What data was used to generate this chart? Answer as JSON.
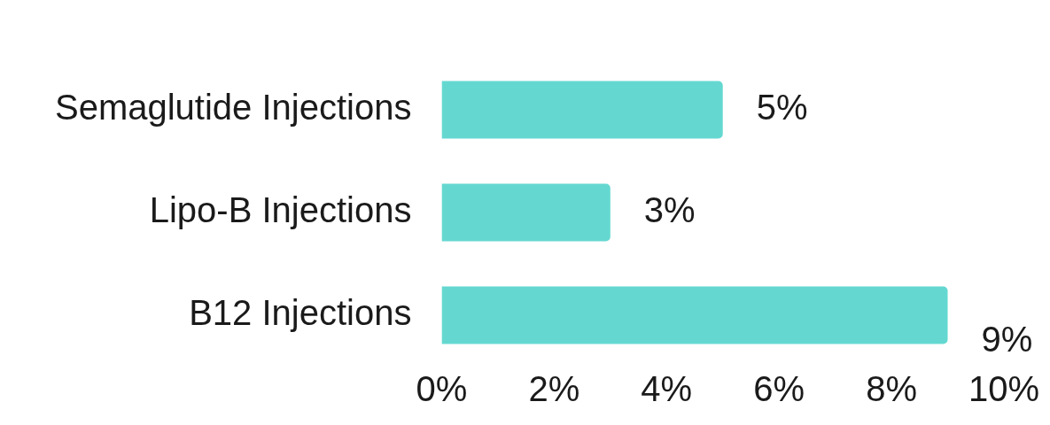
{
  "chart_data": {
    "type": "bar",
    "orientation": "horizontal",
    "categories": [
      "Semaglutide Injections",
      "Lipo-B Injections",
      "B12 Injections"
    ],
    "values": [
      5,
      3,
      9
    ],
    "color": "#64d8d0",
    "value_labels": [
      "5%",
      "3%",
      "9%"
    ],
    "xlim": [
      0,
      10
    ],
    "xticks": [
      {
        "value": 0,
        "label": "0%"
      },
      {
        "value": 2,
        "label": "2%"
      },
      {
        "value": 4,
        "label": "4%"
      },
      {
        "value": 6,
        "label": "6%"
      },
      {
        "value": 8,
        "label": "8%"
      },
      {
        "value": 10,
        "label": "10%"
      }
    ],
    "grid": false,
    "legend": false
  }
}
